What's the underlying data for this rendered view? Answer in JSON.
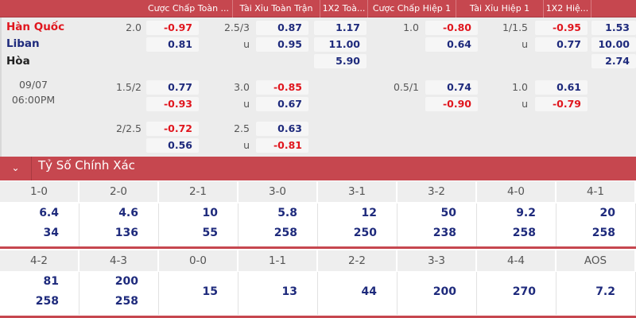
{
  "header": {
    "columns": [
      "Cược Chấp Toàn ...",
      "Tài Xỉu Toàn Trận",
      "1X2 Toà...",
      "Cược Chấp Hiệp 1",
      "Tài Xỉu Hiệp 1",
      "1X2 Hiệ..."
    ]
  },
  "match": {
    "home": "Hàn Quốc",
    "away": "Liban",
    "draw": "Hòa",
    "date": "09/07",
    "time": "06:00PM",
    "colors": {
      "home": "#e0161e",
      "away": "#1e2a7c",
      "negative": "#e0161e",
      "positive": "#1e2a7c",
      "header": "#c6474f"
    },
    "odds_groups": [
      {
        "hdp_line": "2.0",
        "hdp": [
          "-0.97",
          "0.81"
        ],
        "ou_line": "2.5/3",
        "ou_under": "u",
        "ou": [
          "0.87",
          "0.95"
        ],
        "x12": [
          "1.17",
          "11.00",
          "5.90"
        ],
        "h1_hdp_line": "1.0",
        "h1_hdp": [
          "-0.80",
          "0.64"
        ],
        "h1_ou_line": "1/1.5",
        "h1_ou_under": "u",
        "h1_ou": [
          "-0.95",
          "0.77"
        ],
        "h1_x12": [
          "1.53",
          "10.00",
          "2.74"
        ]
      },
      {
        "hdp_line": "1.5/2",
        "hdp": [
          "0.77",
          "-0.93"
        ],
        "ou_line": "3.0",
        "ou_under": "u",
        "ou": [
          "-0.85",
          "0.67"
        ],
        "h1_hdp_line": "0.5/1",
        "h1_hdp": [
          "0.74",
          "-0.90"
        ],
        "h1_ou_line": "1.0",
        "h1_ou_under": "u",
        "h1_ou": [
          "0.61",
          "-0.79"
        ]
      },
      {
        "hdp_line": "2/2.5",
        "hdp": [
          "-0.72",
          "0.56"
        ],
        "ou_line": "2.5",
        "ou_under": "u",
        "ou": [
          "0.63",
          "-0.81"
        ]
      }
    ]
  },
  "correct_score": {
    "title": "Tỷ Số Chính Xác",
    "toggle_icon": "chevron-down-icon",
    "rows": [
      [
        {
          "score": "1-0",
          "values": [
            "6.4",
            "34"
          ]
        },
        {
          "score": "2-0",
          "values": [
            "4.6",
            "136"
          ]
        },
        {
          "score": "2-1",
          "values": [
            "10",
            "55"
          ]
        },
        {
          "score": "3-0",
          "values": [
            "5.8",
            "258"
          ]
        },
        {
          "score": "3-1",
          "values": [
            "12",
            "250"
          ]
        },
        {
          "score": "3-2",
          "values": [
            "50",
            "238"
          ]
        },
        {
          "score": "4-0",
          "values": [
            "9.2",
            "258"
          ]
        },
        {
          "score": "4-1",
          "values": [
            "20",
            "258"
          ]
        }
      ],
      [
        {
          "score": "4-2",
          "values": [
            "81",
            "258"
          ]
        },
        {
          "score": "4-3",
          "values": [
            "200",
            "258"
          ]
        },
        {
          "score": "0-0",
          "values": [
            "15"
          ]
        },
        {
          "score": "1-1",
          "values": [
            "13"
          ]
        },
        {
          "score": "2-2",
          "values": [
            "44"
          ]
        },
        {
          "score": "3-3",
          "values": [
            "200"
          ]
        },
        {
          "score": "4-4",
          "values": [
            "270"
          ]
        },
        {
          "score": "AOS",
          "values": [
            "7.2"
          ]
        }
      ]
    ]
  }
}
